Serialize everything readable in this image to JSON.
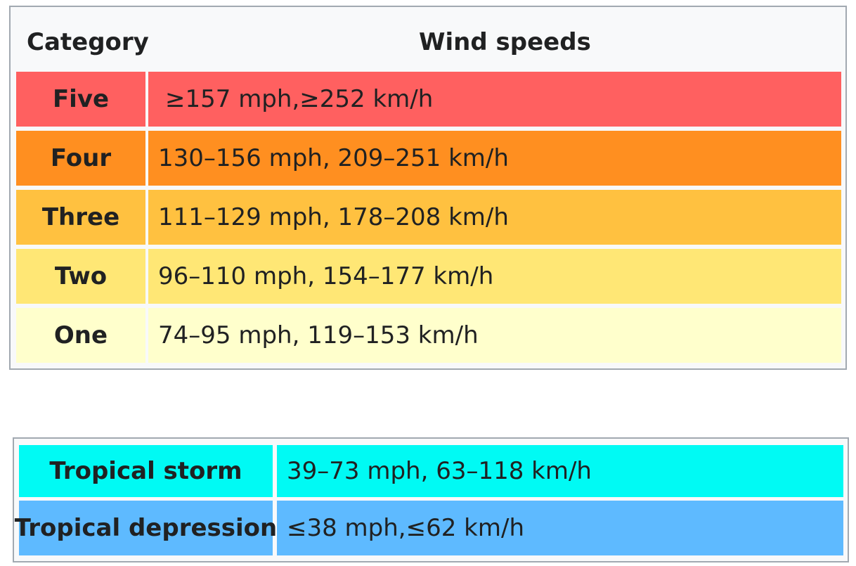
{
  "saffir_simpson": {
    "header": {
      "category": "Category",
      "wind_speeds": "Wind speeds"
    },
    "rows": [
      {
        "category": "Five",
        "speed": "≥157 mph,≥252 km/h",
        "color": "#ff6060"
      },
      {
        "category": "Four",
        "speed": "130–156 mph, 209–251 km/h",
        "color": "#ff8f20"
      },
      {
        "category": "Three",
        "speed": "111–129 mph, 178–208 km/h",
        "color": "#ffc140"
      },
      {
        "category": "Two",
        "speed": "96–110 mph, 154–177 km/h",
        "color": "#ffe775"
      },
      {
        "category": "One",
        "speed": "74–95 mph, 119–153 km/h",
        "color": "#ffffcc"
      }
    ]
  },
  "tropical": {
    "rows": [
      {
        "category": "Tropical storm",
        "speed": "39–73 mph, 63–118 km/h",
        "color": "#00faf4"
      },
      {
        "category": "Tropical depression",
        "speed": "≤38 mph,≤62 km/h",
        "color": "#5ebaff"
      }
    ]
  }
}
